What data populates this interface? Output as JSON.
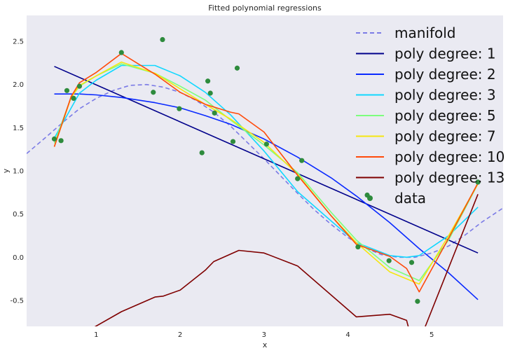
{
  "chart_data": {
    "type": "line",
    "title": "Fitted polynomial regressions",
    "xlabel": "x",
    "ylabel": "y",
    "xlim": [
      0.17,
      5.85
    ],
    "ylim": [
      -0.8,
      2.8
    ],
    "xticks": [
      1,
      2,
      3,
      4,
      5
    ],
    "yticks": [
      -0.5,
      0.0,
      0.5,
      1.0,
      1.5,
      2.0,
      2.5
    ],
    "ytick_labels": [
      "-0.5",
      "0.0",
      "0.5",
      "1.0",
      "1.5",
      "2.0",
      "2.5"
    ],
    "grid": false,
    "legend_position": "top-right",
    "series": [
      {
        "name": "manifold",
        "style": "dashed",
        "color": "#7b7be6",
        "x": [
          0.17,
          0.4,
          0.6,
          0.8,
          1.0,
          1.2,
          1.4,
          1.6,
          1.8,
          2.0,
          2.2,
          2.4,
          2.6,
          2.8,
          3.0,
          3.2,
          3.4,
          3.6,
          3.8,
          4.0,
          4.2,
          4.4,
          4.6,
          4.8,
          5.0,
          5.2,
          5.4,
          5.6,
          5.85
        ],
        "y": [
          1.2,
          1.39,
          1.56,
          1.72,
          1.84,
          1.93,
          1.99,
          2.0,
          1.97,
          1.91,
          1.81,
          1.68,
          1.52,
          1.33,
          1.14,
          0.94,
          0.74,
          0.55,
          0.38,
          0.23,
          0.11,
          0.03,
          0.0,
          0.0,
          0.05,
          0.13,
          0.26,
          0.41,
          0.57
        ]
      },
      {
        "name": "poly degree: 1",
        "color": "#00008b",
        "x": [
          0.5,
          5.55
        ],
        "y": [
          2.21,
          0.05
        ]
      },
      {
        "name": "poly degree: 2",
        "color": "#0a2aff",
        "x": [
          0.5,
          0.8,
          1.0,
          1.3,
          1.7,
          2.0,
          2.3,
          2.6,
          3.0,
          3.4,
          3.8,
          4.1,
          4.5,
          4.85,
          5.2,
          5.55
        ],
        "y": [
          1.89,
          1.89,
          1.88,
          1.85,
          1.79,
          1.73,
          1.64,
          1.54,
          1.37,
          1.16,
          0.92,
          0.71,
          0.4,
          0.1,
          -0.18,
          -0.49
        ]
      },
      {
        "name": "poly degree: 3",
        "color": "#11d8ff",
        "x": [
          0.5,
          0.8,
          1.0,
          1.3,
          1.7,
          2.0,
          2.3,
          2.6,
          3.0,
          3.4,
          3.8,
          4.1,
          4.5,
          4.7,
          4.85,
          5.2,
          5.55
        ],
        "y": [
          1.38,
          1.9,
          2.05,
          2.22,
          2.22,
          2.1,
          1.91,
          1.65,
          1.23,
          0.76,
          0.42,
          0.17,
          0.02,
          0.0,
          0.02,
          0.25,
          0.58
        ]
      },
      {
        "name": "poly degree: 5",
        "color": "#7dff7d",
        "x": [
          0.5,
          0.7,
          0.8,
          1.0,
          1.3,
          1.7,
          2.0,
          2.3,
          2.6,
          3.0,
          3.4,
          3.8,
          4.1,
          4.5,
          4.85,
          5.2,
          5.55
        ],
        "y": [
          1.32,
          1.85,
          1.98,
          2.1,
          2.24,
          2.13,
          1.98,
          1.82,
          1.59,
          1.3,
          0.98,
          0.52,
          0.2,
          -0.12,
          -0.27,
          0.2,
          0.85
        ]
      },
      {
        "name": "poly degree: 7",
        "color": "#f5e611",
        "x": [
          0.5,
          0.7,
          0.8,
          1.0,
          1.3,
          1.7,
          2.0,
          2.3,
          2.6,
          3.0,
          3.4,
          3.8,
          4.1,
          4.5,
          4.85,
          5.2,
          5.55
        ],
        "y": [
          1.28,
          1.85,
          1.99,
          2.1,
          2.26,
          2.13,
          1.95,
          1.77,
          1.6,
          1.33,
          0.96,
          0.48,
          0.17,
          -0.17,
          -0.31,
          0.25,
          0.85
        ]
      },
      {
        "name": "poly degree: 10",
        "color": "#ff4a0a",
        "x": [
          0.5,
          0.7,
          0.8,
          1.0,
          1.3,
          1.7,
          2.0,
          2.3,
          2.6,
          2.7,
          3.0,
          3.4,
          3.8,
          4.1,
          4.5,
          4.7,
          4.85,
          5.2,
          5.55
        ],
        "y": [
          1.28,
          1.86,
          2.02,
          2.14,
          2.36,
          2.12,
          1.91,
          1.77,
          1.68,
          1.66,
          1.45,
          0.95,
          0.48,
          0.15,
          0.01,
          -0.13,
          -0.4,
          0.22,
          0.86
        ]
      },
      {
        "name": "poly degree: 13",
        "color": "#7f0000",
        "x": [
          0.45,
          1.3,
          1.7,
          1.8,
          2.0,
          2.3,
          2.4,
          2.7,
          3.0,
          3.4,
          4.1,
          4.5,
          4.7,
          4.8,
          5.55
        ],
        "y": [
          -1.1,
          -0.63,
          -0.46,
          -0.45,
          -0.38,
          -0.15,
          -0.05,
          0.08,
          0.05,
          -0.1,
          -0.69,
          -0.66,
          -0.73,
          -1.1,
          0.73
        ]
      }
    ],
    "data_points": {
      "name": "data",
      "color": "#2e8b3d",
      "x": [
        0.5,
        0.58,
        0.65,
        0.73,
        0.8,
        1.3,
        1.68,
        1.79,
        1.99,
        2.26,
        2.33,
        2.36,
        2.41,
        2.63,
        2.68,
        3.03,
        3.4,
        3.45,
        4.12,
        4.23,
        4.49,
        4.76,
        4.83,
        5.55
      ],
      "y": [
        1.37,
        1.35,
        1.93,
        1.84,
        1.98,
        2.37,
        1.91,
        2.52,
        1.72,
        1.21,
        2.04,
        1.9,
        1.67,
        1.34,
        2.19,
        1.31,
        0.91,
        1.12,
        0.12,
        0.72,
        -0.04,
        -0.06,
        -0.51,
        0.87
      ]
    }
  }
}
